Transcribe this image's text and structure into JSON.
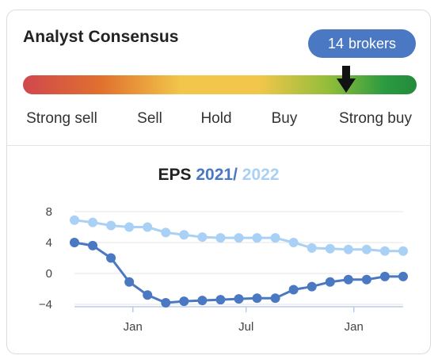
{
  "header": {
    "title": "Analyst Consensus",
    "brokers_count": "14",
    "brokers_label": "brokers"
  },
  "gauge": {
    "labels": [
      "Strong sell",
      "Sell",
      "Hold",
      "Buy",
      "Strong buy"
    ],
    "position": 0.82,
    "marker_icon": "arrow-down-icon"
  },
  "eps": {
    "label": "EPS",
    "year1": "2021",
    "separator": "/",
    "year2": "2022"
  },
  "colors": {
    "accent": "#4a78c2",
    "series_2021": "#4a78c2",
    "series_2022": "#a9d0f5"
  },
  "chart_data": {
    "type": "line",
    "title": "",
    "xlabel": "",
    "ylabel": "",
    "ylim": [
      -4,
      8
    ],
    "yticks": [
      8,
      4,
      0,
      -4
    ],
    "xticks": [
      "Jan",
      "Jul",
      "Jan"
    ],
    "xtick_index": [
      3.2,
      9.4,
      15.3
    ],
    "x": [
      0,
      1,
      2,
      3,
      4,
      5,
      6,
      7,
      8,
      9,
      10,
      11,
      12,
      13,
      14,
      15,
      16,
      17,
      18
    ],
    "grid": true,
    "legend": "none",
    "series": [
      {
        "name": "2021",
        "values": [
          4.0,
          3.6,
          2.0,
          -1.1,
          -2.8,
          -3.8,
          -3.6,
          -3.5,
          -3.4,
          -3.3,
          -3.2,
          -3.2,
          -2.1,
          -1.7,
          -1.1,
          -0.8,
          -0.8,
          -0.4,
          -0.4
        ]
      },
      {
        "name": "2022",
        "values": [
          6.9,
          6.6,
          6.2,
          6.0,
          6.0,
          5.3,
          5.0,
          4.7,
          4.6,
          4.6,
          4.6,
          4.6,
          4.0,
          3.3,
          3.2,
          3.1,
          3.1,
          2.9,
          2.9
        ]
      }
    ]
  }
}
